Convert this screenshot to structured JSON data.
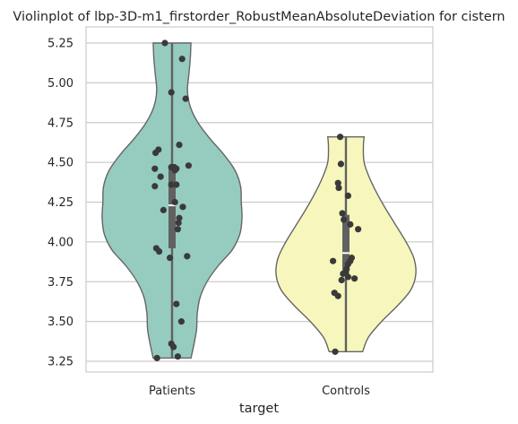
{
  "chart_data": {
    "type": "violin",
    "title": "Violinplot of lbp-3D-m1_firstorder_RobustMeanAbsoluteDeviation for cistern",
    "xlabel": "target",
    "ylabel": "",
    "categories": [
      "Patients",
      "Controls"
    ],
    "ylim": [
      3.18,
      5.35
    ],
    "yticks": [
      "3.25",
      "3.50",
      "3.75",
      "4.00",
      "4.25",
      "4.50",
      "4.75",
      "5.00",
      "5.25"
    ],
    "grid": true,
    "colors": {
      "Patients": "#96cbc0",
      "Controls": "#f7f7bd",
      "points": "#3a3a3a",
      "box": "#616161",
      "violin_edge": "#666666",
      "grid": "#cccccc"
    },
    "series": [
      {
        "category": "Patients",
        "range": [
          3.27,
          5.25
        ],
        "quartiles": [
          3.96,
          4.23,
          4.47
        ],
        "density_profile": [
          [
            3.27,
            0.27
          ],
          [
            3.35,
            0.31
          ],
          [
            3.45,
            0.35
          ],
          [
            3.55,
            0.36
          ],
          [
            3.65,
            0.4
          ],
          [
            3.75,
            0.5
          ],
          [
            3.85,
            0.66
          ],
          [
            3.95,
            0.86
          ],
          [
            4.05,
            0.97
          ],
          [
            4.15,
            1.0
          ],
          [
            4.25,
            0.99
          ],
          [
            4.35,
            0.98
          ],
          [
            4.45,
            0.9
          ],
          [
            4.55,
            0.74
          ],
          [
            4.65,
            0.54
          ],
          [
            4.75,
            0.37
          ],
          [
            4.85,
            0.26
          ],
          [
            4.95,
            0.22
          ],
          [
            5.05,
            0.24
          ],
          [
            5.15,
            0.26
          ],
          [
            5.25,
            0.27
          ]
        ],
        "points": [
          [
            5.25,
            -0.2
          ],
          [
            5.15,
            0.28
          ],
          [
            4.94,
            -0.02
          ],
          [
            4.9,
            0.38
          ],
          [
            4.61,
            0.2
          ],
          [
            4.58,
            -0.38
          ],
          [
            4.56,
            -0.46
          ],
          [
            4.48,
            0.46
          ],
          [
            4.47,
            -0.02
          ],
          [
            4.47,
            0.06
          ],
          [
            4.46,
            0.12
          ],
          [
            4.46,
            -0.48
          ],
          [
            4.45,
            0.08
          ],
          [
            4.41,
            -0.32
          ],
          [
            4.36,
            0.12
          ],
          [
            4.36,
            -0.02
          ],
          [
            4.35,
            -0.48
          ],
          [
            4.25,
            0.08
          ],
          [
            4.22,
            0.3
          ],
          [
            4.2,
            -0.24
          ],
          [
            4.15,
            0.2
          ],
          [
            4.12,
            0.18
          ],
          [
            4.08,
            0.16
          ],
          [
            3.96,
            -0.44
          ],
          [
            3.94,
            -0.36
          ],
          [
            3.91,
            0.42
          ],
          [
            3.9,
            -0.06
          ],
          [
            3.61,
            0.12
          ],
          [
            3.5,
            0.26
          ],
          [
            3.36,
            -0.02
          ],
          [
            3.34,
            0.04
          ],
          [
            3.28,
            0.16
          ],
          [
            3.27,
            -0.42
          ]
        ]
      },
      {
        "category": "Controls",
        "range": [
          3.31,
          4.66
        ],
        "quartiles": [
          3.82,
          3.93,
          4.17
        ],
        "density_profile": [
          [
            3.31,
            0.24
          ],
          [
            3.4,
            0.32
          ],
          [
            3.5,
            0.51
          ],
          [
            3.6,
            0.74
          ],
          [
            3.7,
            0.93
          ],
          [
            3.8,
            1.0
          ],
          [
            3.9,
            0.97
          ],
          [
            4.0,
            0.86
          ],
          [
            4.1,
            0.72
          ],
          [
            4.2,
            0.58
          ],
          [
            4.3,
            0.45
          ],
          [
            4.4,
            0.34
          ],
          [
            4.5,
            0.26
          ],
          [
            4.6,
            0.25
          ],
          [
            4.66,
            0.26
          ]
        ],
        "points": [
          [
            4.66,
            -0.16
          ],
          [
            4.49,
            -0.14
          ],
          [
            4.37,
            -0.22
          ],
          [
            4.34,
            -0.2
          ],
          [
            4.29,
            0.06
          ],
          [
            4.18,
            -0.1
          ],
          [
            4.14,
            -0.06
          ],
          [
            4.11,
            0.12
          ],
          [
            4.08,
            0.34
          ],
          [
            3.9,
            0.16
          ],
          [
            3.88,
            0.12
          ],
          [
            3.88,
            -0.36
          ],
          [
            3.86,
            0.06
          ],
          [
            3.83,
            0.02
          ],
          [
            3.81,
            0.0
          ],
          [
            3.8,
            -0.08
          ],
          [
            3.78,
            0.06
          ],
          [
            3.77,
            0.24
          ],
          [
            3.76,
            -0.12
          ],
          [
            3.68,
            -0.32
          ],
          [
            3.66,
            -0.22
          ],
          [
            3.31,
            -0.3
          ]
        ]
      }
    ]
  }
}
